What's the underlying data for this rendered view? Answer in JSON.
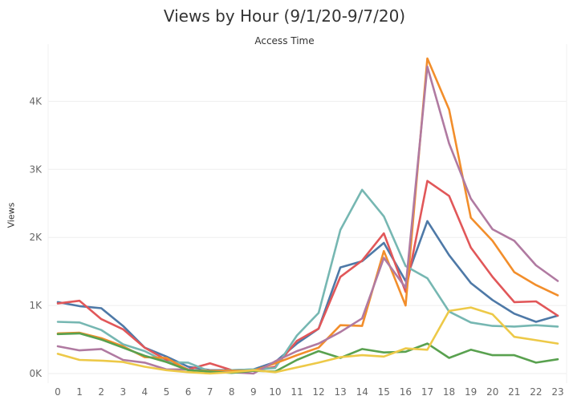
{
  "chart_data": {
    "type": "line",
    "title": "Views by Hour (9/1/20-9/7/20)",
    "subtitle": "Access Time",
    "xlabel": "",
    "ylabel": "Views",
    "x": [
      0,
      1,
      2,
      3,
      4,
      5,
      6,
      7,
      8,
      9,
      10,
      11,
      12,
      13,
      14,
      15,
      16,
      17,
      18,
      19,
      20,
      21,
      22,
      23
    ],
    "x_tick_labels": [
      "0",
      "1",
      "2",
      "3",
      "4",
      "5",
      "6",
      "7",
      "8",
      "9",
      "10",
      "11",
      "12",
      "13",
      "14",
      "15",
      "16",
      "17",
      "18",
      "19",
      "20",
      "21",
      "22",
      "23"
    ],
    "ylim": [
      -100,
      5000
    ],
    "y_ticks": [
      0,
      1000,
      2000,
      3000,
      4000
    ],
    "y_tick_labels": [
      "0K",
      "1K",
      "2K",
      "3K",
      "4K"
    ],
    "grid": "horizontal",
    "legend": "none",
    "series": [
      {
        "color": "#4e79a7",
        "values": [
          1050,
          990,
          960,
          700,
          380,
          250,
          100,
          50,
          50,
          60,
          170,
          440,
          660,
          1560,
          1650,
          1920,
          1360,
          2240,
          1740,
          1330,
          1080,
          880,
          760,
          850
        ]
      },
      {
        "color": "#e15759",
        "values": [
          1030,
          1070,
          800,
          650,
          380,
          200,
          60,
          150,
          50,
          40,
          100,
          480,
          660,
          1420,
          1660,
          2060,
          1200,
          2830,
          2610,
          1850,
          1420,
          1050,
          1060,
          850
        ]
      },
      {
        "color": "#76b7b2",
        "values": [
          760,
          750,
          640,
          430,
          330,
          170,
          160,
          30,
          50,
          60,
          80,
          560,
          890,
          2110,
          2700,
          2310,
          1580,
          1400,
          910,
          750,
          700,
          690,
          710,
          690
        ]
      },
      {
        "color": "#f28e2b",
        "values": [
          590,
          600,
          520,
          400,
          240,
          230,
          50,
          40,
          40,
          40,
          150,
          270,
          380,
          710,
          700,
          1800,
          1000,
          4630,
          3880,
          2290,
          1950,
          1490,
          1300,
          1150
        ]
      },
      {
        "color": "#b07aa1",
        "values": [
          400,
          340,
          360,
          200,
          160,
          60,
          60,
          20,
          20,
          0,
          180,
          330,
          440,
          610,
          810,
          1700,
          1260,
          4510,
          3380,
          2570,
          2120,
          1950,
          1590,
          1360
        ]
      },
      {
        "color": "#59a14f",
        "values": [
          580,
          590,
          500,
          380,
          260,
          170,
          50,
          30,
          10,
          40,
          30,
          200,
          330,
          230,
          360,
          310,
          320,
          440,
          230,
          350,
          270,
          270,
          160,
          210
        ]
      },
      {
        "color": "#edc948",
        "values": [
          290,
          200,
          190,
          170,
          100,
          50,
          20,
          0,
          20,
          50,
          20,
          90,
          160,
          240,
          270,
          250,
          370,
          350,
          920,
          970,
          870,
          540,
          490,
          440
        ]
      }
    ]
  }
}
